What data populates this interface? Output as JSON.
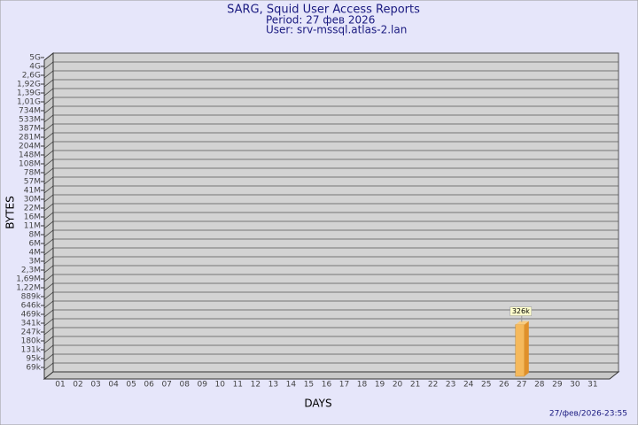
{
  "chart_data": {
    "type": "bar",
    "title": "SARG, Squid User Access Reports",
    "subtitle": "Period: 27 фев 2026",
    "user": "User: srv-mssql.atlas-2.lan",
    "x_label": "DAYS",
    "y_label": "BYTES",
    "footer": "27/фев/2026-23:55",
    "categories": [
      "01",
      "02",
      "03",
      "04",
      "05",
      "06",
      "07",
      "08",
      "09",
      "10",
      "11",
      "12",
      "13",
      "14",
      "15",
      "16",
      "17",
      "18",
      "19",
      "20",
      "21",
      "22",
      "23",
      "24",
      "25",
      "26",
      "27",
      "28",
      "29",
      "30",
      "31"
    ],
    "values": [
      null,
      null,
      null,
      null,
      null,
      null,
      null,
      null,
      null,
      null,
      null,
      null,
      null,
      null,
      null,
      null,
      null,
      null,
      null,
      null,
      null,
      null,
      null,
      null,
      null,
      null,
      326000,
      null,
      null,
      null,
      null
    ],
    "value_labels": [
      null,
      null,
      null,
      null,
      null,
      null,
      null,
      null,
      null,
      null,
      null,
      null,
      null,
      null,
      null,
      null,
      null,
      null,
      null,
      null,
      null,
      null,
      null,
      null,
      null,
      null,
      "326k",
      null,
      null,
      null,
      null
    ],
    "color": "#f5b95c",
    "ylim": [
      0,
      5000000000
    ],
    "yticks": [
      {
        "value": 69000,
        "label": "69k"
      },
      {
        "value": 95000,
        "label": "95k"
      },
      {
        "value": 131000,
        "label": "131k"
      },
      {
        "value": 180000,
        "label": "180k"
      },
      {
        "value": 247000,
        "label": "247k"
      },
      {
        "value": 341000,
        "label": "341k"
      },
      {
        "value": 469000,
        "label": "469k"
      },
      {
        "value": 646000,
        "label": "646k"
      },
      {
        "value": 889000,
        "label": "889k"
      },
      {
        "value": 1220000,
        "label": "1,22M"
      },
      {
        "value": 1690000,
        "label": "1,69M"
      },
      {
        "value": 2300000,
        "label": "2,3M"
      },
      {
        "value": 3000000,
        "label": "3M"
      },
      {
        "value": 4000000,
        "label": "4M"
      },
      {
        "value": 6000000,
        "label": "6M"
      },
      {
        "value": 8000000,
        "label": "8M"
      },
      {
        "value": 11000000,
        "label": "11M"
      },
      {
        "value": 16000000,
        "label": "16M"
      },
      {
        "value": 22000000,
        "label": "22M"
      },
      {
        "value": 30000000,
        "label": "30M"
      },
      {
        "value": 41000000,
        "label": "41M"
      },
      {
        "value": 57000000,
        "label": "57M"
      },
      {
        "value": 78000000,
        "label": "78M"
      },
      {
        "value": 108000000,
        "label": "108M"
      },
      {
        "value": 148000000,
        "label": "148M"
      },
      {
        "value": 204000000,
        "label": "204M"
      },
      {
        "value": 281000000,
        "label": "281M"
      },
      {
        "value": 387000000,
        "label": "387M"
      },
      {
        "value": 533000000,
        "label": "533M"
      },
      {
        "value": 734000000,
        "label": "734M"
      },
      {
        "value": 1010000000,
        "label": "1,01G"
      },
      {
        "value": 1390000000,
        "label": "1,39G"
      },
      {
        "value": 1920000000,
        "label": "1,92G"
      },
      {
        "value": 2600000000,
        "label": "2,6G"
      },
      {
        "value": 4000000000,
        "label": "4G"
      },
      {
        "value": 5000000000,
        "label": "5G"
      }
    ],
    "grid": true
  }
}
